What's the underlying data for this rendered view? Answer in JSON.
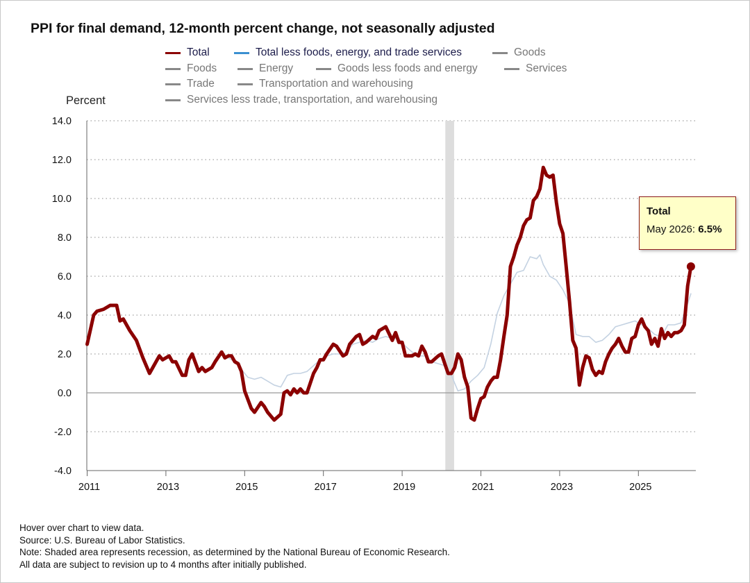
{
  "title": "PPI for final demand, 12-month percent change, not seasonally adjusted",
  "legend": [
    {
      "label": "Total",
      "color": "#8b0000",
      "active": true
    },
    {
      "label": "Total less foods, energy, and trade services",
      "color": "#3a8fd0",
      "active": true
    },
    {
      "label": "Goods",
      "color": "#888888",
      "active": false
    },
    {
      "label": "Foods",
      "color": "#888888",
      "active": false
    },
    {
      "label": "Energy",
      "color": "#888888",
      "active": false
    },
    {
      "label": "Goods less foods and energy",
      "color": "#888888",
      "active": false
    },
    {
      "label": "Services",
      "color": "#888888",
      "active": false
    },
    {
      "label": "Trade",
      "color": "#888888",
      "active": false
    },
    {
      "label": "Transportation and warehousing",
      "color": "#888888",
      "active": false
    },
    {
      "label": "Services less trade, transportation, and warehousing",
      "color": "#888888",
      "active": false
    }
  ],
  "tooltip": {
    "series": "Total",
    "label": "May 2026: ",
    "value": "6.5%"
  },
  "notes": [
    "Hover over chart to view data.",
    "Source: U.S. Bureau of Labor Statistics.",
    "Note: Shaded area represents recession, as determined by the National Bureau of Economic Research.",
    "All data are subject to revision up to 4 months after initially published."
  ],
  "chart_data": {
    "type": "line",
    "ylabel": "Percent",
    "ylim": [
      -4,
      14
    ],
    "yticks": [
      "-4.0",
      "-2.0",
      "0.0",
      "2.0",
      "4.0",
      "6.0",
      "8.0",
      "10.0",
      "12.0",
      "14.0"
    ],
    "xlim": [
      "2011-01",
      "2026-05"
    ],
    "xticks": [
      "2011",
      "2013",
      "2015",
      "2017",
      "2019",
      "2021",
      "2023",
      "2025"
    ],
    "grid": "horizontal dotted",
    "recession": {
      "start": "2020-03",
      "end": "2020-04",
      "color": "#dddddd"
    },
    "series": [
      {
        "name": "Total",
        "color": "#8b0000",
        "points": [
          [
            "2011-01",
            2.5
          ],
          [
            "2011-03",
            4.0
          ],
          [
            "2011-04",
            4.2
          ],
          [
            "2011-06",
            4.3
          ],
          [
            "2011-08",
            4.5
          ],
          [
            "2011-10",
            4.5
          ],
          [
            "2011-11",
            3.7
          ],
          [
            "2011-12",
            3.8
          ],
          [
            "2012-02",
            3.2
          ],
          [
            "2012-04",
            2.7
          ],
          [
            "2012-06",
            1.8
          ],
          [
            "2012-08",
            1.0
          ],
          [
            "2012-09",
            1.3
          ],
          [
            "2012-11",
            1.9
          ],
          [
            "2012-12",
            1.7
          ],
          [
            "2013-02",
            1.9
          ],
          [
            "2013-03",
            1.6
          ],
          [
            "2013-04",
            1.6
          ],
          [
            "2013-06",
            0.9
          ],
          [
            "2013-07",
            0.9
          ],
          [
            "2013-08",
            1.7
          ],
          [
            "2013-09",
            2.0
          ],
          [
            "2013-11",
            1.1
          ],
          [
            "2013-12",
            1.3
          ],
          [
            "2014-01",
            1.1
          ],
          [
            "2014-03",
            1.3
          ],
          [
            "2014-04",
            1.6
          ],
          [
            "2014-06",
            2.1
          ],
          [
            "2014-07",
            1.8
          ],
          [
            "2014-08",
            1.9
          ],
          [
            "2014-09",
            1.9
          ],
          [
            "2014-10",
            1.6
          ],
          [
            "2014-11",
            1.5
          ],
          [
            "2014-12",
            1.1
          ],
          [
            "2015-01",
            0.1
          ],
          [
            "2015-03",
            -0.8
          ],
          [
            "2015-04",
            -1.0
          ],
          [
            "2015-06",
            -0.5
          ],
          [
            "2015-07",
            -0.7
          ],
          [
            "2015-08",
            -1.0
          ],
          [
            "2015-10",
            -1.4
          ],
          [
            "2015-12",
            -1.1
          ],
          [
            "2016-01",
            0.0
          ],
          [
            "2016-02",
            0.1
          ],
          [
            "2016-03",
            -0.1
          ],
          [
            "2016-04",
            0.2
          ],
          [
            "2016-05",
            0.0
          ],
          [
            "2016-06",
            0.2
          ],
          [
            "2016-07",
            0.0
          ],
          [
            "2016-08",
            0.0
          ],
          [
            "2016-10",
            1.0
          ],
          [
            "2016-11",
            1.3
          ],
          [
            "2016-12",
            1.7
          ],
          [
            "2017-01",
            1.7
          ],
          [
            "2017-02",
            2.0
          ],
          [
            "2017-04",
            2.5
          ],
          [
            "2017-05",
            2.4
          ],
          [
            "2017-07",
            1.9
          ],
          [
            "2017-08",
            2.0
          ],
          [
            "2017-09",
            2.5
          ],
          [
            "2017-11",
            2.9
          ],
          [
            "2017-12",
            3.0
          ],
          [
            "2018-01",
            2.5
          ],
          [
            "2018-02",
            2.6
          ],
          [
            "2018-04",
            2.9
          ],
          [
            "2018-05",
            2.8
          ],
          [
            "2018-06",
            3.2
          ],
          [
            "2018-08",
            3.4
          ],
          [
            "2018-10",
            2.7
          ],
          [
            "2018-11",
            3.1
          ],
          [
            "2018-12",
            2.6
          ],
          [
            "2019-01",
            2.6
          ],
          [
            "2019-02",
            1.9
          ],
          [
            "2019-04",
            1.9
          ],
          [
            "2019-05",
            2.0
          ],
          [
            "2019-06",
            1.9
          ],
          [
            "2019-07",
            2.4
          ],
          [
            "2019-08",
            2.1
          ],
          [
            "2019-09",
            1.6
          ],
          [
            "2019-10",
            1.6
          ],
          [
            "2019-12",
            1.9
          ],
          [
            "2020-01",
            2.0
          ],
          [
            "2020-02",
            1.5
          ],
          [
            "2020-03",
            1.0
          ],
          [
            "2020-04",
            1.0
          ],
          [
            "2020-05",
            1.3
          ],
          [
            "2020-06",
            2.0
          ],
          [
            "2020-07",
            1.7
          ],
          [
            "2020-08",
            0.8
          ],
          [
            "2020-09",
            0.3
          ],
          [
            "2020-10",
            -1.3
          ],
          [
            "2020-11",
            -1.4
          ],
          [
            "2020-12",
            -0.8
          ],
          [
            "2021-01",
            -0.3
          ],
          [
            "2021-02",
            -0.2
          ],
          [
            "2021-03",
            0.3
          ],
          [
            "2021-04",
            0.6
          ],
          [
            "2021-05",
            0.8
          ],
          [
            "2021-06",
            0.8
          ],
          [
            "2021-07",
            1.7
          ],
          [
            "2021-08",
            2.9
          ],
          [
            "2021-09",
            4.0
          ],
          [
            "2021-10",
            6.5
          ],
          [
            "2021-11",
            7.0
          ],
          [
            "2021-12",
            7.6
          ],
          [
            "2022-01",
            8.0
          ],
          [
            "2022-02",
            8.6
          ],
          [
            "2022-03",
            8.9
          ],
          [
            "2022-04",
            9.0
          ],
          [
            "2022-05",
            9.9
          ],
          [
            "2022-06",
            10.1
          ],
          [
            "2022-07",
            10.5
          ],
          [
            "2022-08",
            11.6
          ],
          [
            "2022-09",
            11.2
          ],
          [
            "2022-10",
            11.1
          ],
          [
            "2022-11",
            11.2
          ],
          [
            "2022-12",
            9.8
          ],
          [
            "2023-01",
            8.7
          ],
          [
            "2023-02",
            8.2
          ],
          [
            "2023-03",
            6.5
          ],
          [
            "2023-04",
            4.7
          ],
          [
            "2023-05",
            2.7
          ],
          [
            "2023-06",
            2.3
          ],
          [
            "2023-07",
            0.4
          ],
          [
            "2023-08",
            1.3
          ],
          [
            "2023-09",
            1.9
          ],
          [
            "2023-10",
            1.8
          ],
          [
            "2023-11",
            1.2
          ],
          [
            "2023-12",
            0.9
          ],
          [
            "2024-01",
            1.1
          ],
          [
            "2024-02",
            1.0
          ],
          [
            "2024-03",
            1.6
          ],
          [
            "2024-04",
            2.0
          ],
          [
            "2024-05",
            2.3
          ],
          [
            "2024-06",
            2.5
          ],
          [
            "2024-07",
            2.8
          ],
          [
            "2024-08",
            2.4
          ],
          [
            "2024-09",
            2.1
          ],
          [
            "2024-10",
            2.1
          ],
          [
            "2024-11",
            2.8
          ],
          [
            "2024-12",
            2.9
          ],
          [
            "2025-01",
            3.5
          ],
          [
            "2025-02",
            3.8
          ],
          [
            "2025-03",
            3.4
          ],
          [
            "2025-04",
            3.2
          ],
          [
            "2025-05",
            2.5
          ],
          [
            "2025-06",
            2.8
          ],
          [
            "2025-07",
            2.4
          ],
          [
            "2025-08",
            3.3
          ],
          [
            "2025-09",
            2.8
          ],
          [
            "2025-10",
            3.1
          ],
          [
            "2025-11",
            2.9
          ],
          [
            "2025-12",
            3.1
          ],
          [
            "2026-01",
            3.1
          ],
          [
            "2026-02",
            3.2
          ],
          [
            "2026-03",
            3.5
          ],
          [
            "2026-04",
            5.5
          ],
          [
            "2026-05",
            6.5
          ]
        ]
      },
      {
        "name": "Total less foods, energy, and trade services",
        "color": "#c4d2e2",
        "points": [
          [
            "2014-08",
            1.8
          ],
          [
            "2014-10",
            1.6
          ],
          [
            "2014-12",
            1.2
          ],
          [
            "2015-02",
            0.8
          ],
          [
            "2015-04",
            0.7
          ],
          [
            "2015-06",
            0.8
          ],
          [
            "2015-08",
            0.6
          ],
          [
            "2015-10",
            0.4
          ],
          [
            "2015-12",
            0.3
          ],
          [
            "2016-02",
            0.9
          ],
          [
            "2016-04",
            1.0
          ],
          [
            "2016-06",
            1.0
          ],
          [
            "2016-08",
            1.1
          ],
          [
            "2016-10",
            1.4
          ],
          [
            "2016-12",
            1.7
          ],
          [
            "2017-02",
            1.9
          ],
          [
            "2017-04",
            2.0
          ],
          [
            "2017-06",
            2.0
          ],
          [
            "2017-08",
            2.1
          ],
          [
            "2017-10",
            2.5
          ],
          [
            "2017-12",
            2.6
          ],
          [
            "2018-02",
            2.7
          ],
          [
            "2018-04",
            2.6
          ],
          [
            "2018-06",
            2.8
          ],
          [
            "2018-08",
            2.9
          ],
          [
            "2018-10",
            2.8
          ],
          [
            "2018-12",
            2.8
          ],
          [
            "2019-02",
            2.4
          ],
          [
            "2019-04",
            2.1
          ],
          [
            "2019-06",
            1.9
          ],
          [
            "2019-08",
            1.9
          ],
          [
            "2019-10",
            1.6
          ],
          [
            "2019-12",
            1.5
          ],
          [
            "2020-02",
            1.4
          ],
          [
            "2020-04",
            0.9
          ],
          [
            "2020-06",
            0.1
          ],
          [
            "2020-08",
            0.2
          ],
          [
            "2020-10",
            0.6
          ],
          [
            "2020-12",
            0.9
          ],
          [
            "2021-02",
            1.3
          ],
          [
            "2021-04",
            2.5
          ],
          [
            "2021-06",
            4.1
          ],
          [
            "2021-08",
            5.0
          ],
          [
            "2021-10",
            5.6
          ],
          [
            "2021-12",
            6.2
          ],
          [
            "2022-02",
            6.3
          ],
          [
            "2022-04",
            7.0
          ],
          [
            "2022-06",
            6.9
          ],
          [
            "2022-07",
            7.1
          ],
          [
            "2022-08",
            6.6
          ],
          [
            "2022-10",
            6.0
          ],
          [
            "2022-12",
            5.8
          ],
          [
            "2023-02",
            5.3
          ],
          [
            "2023-04",
            4.6
          ],
          [
            "2023-06",
            3.0
          ],
          [
            "2023-08",
            2.9
          ],
          [
            "2023-10",
            2.9
          ],
          [
            "2023-12",
            2.6
          ],
          [
            "2024-02",
            2.7
          ],
          [
            "2024-04",
            3.0
          ],
          [
            "2024-06",
            3.4
          ],
          [
            "2024-08",
            3.5
          ],
          [
            "2024-10",
            3.6
          ],
          [
            "2024-12",
            3.7
          ],
          [
            "2025-02",
            3.5
          ],
          [
            "2025-04",
            3.3
          ],
          [
            "2025-06",
            3.0
          ],
          [
            "2025-08",
            2.9
          ],
          [
            "2025-10",
            3.5
          ],
          [
            "2025-12",
            3.5
          ],
          [
            "2026-02",
            3.6
          ],
          [
            "2026-04",
            4.6
          ],
          [
            "2026-05",
            5.1
          ]
        ]
      }
    ]
  }
}
